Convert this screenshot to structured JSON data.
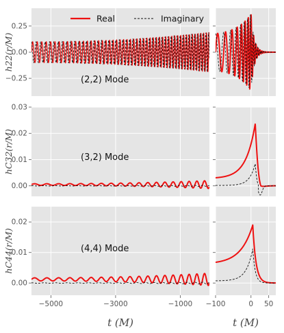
{
  "chart_data": {
    "type": "line",
    "legend": {
      "entries": [
        {
          "label": "Real",
          "color": "#ee1111",
          "style": "solid"
        },
        {
          "label": "Imaginary",
          "color": "#111111",
          "style": "dashed"
        }
      ],
      "placement": "top"
    },
    "colors": {
      "real": "#ee1111",
      "imaginary": "#111111",
      "panel_bg": "#e5e5e5",
      "grid": "#ffffff"
    },
    "grid": true,
    "xlabel_left": "t (M)",
    "xlabel_right": "t (M)",
    "xticks_left": [
      "−5000",
      "−3000",
      "−1000"
    ],
    "xticks_right": [
      "−100",
      "0",
      "50"
    ],
    "xlim_left": [
      -5600,
      -100
    ],
    "xlim_right": [
      -100,
      70
    ],
    "rows": [
      {
        "mode_label": "(2,2) Mode",
        "ylabel": "h22(r/M)",
        "ylim": [
          -0.42,
          0.42
        ],
        "yticks": [
          "0.25",
          "0.00",
          "−0.25"
        ],
        "inspiral": {
          "real_amplitude": [
            0.1,
            0.19
          ],
          "real_offset": 0.0,
          "imag_amplitude": [
            0.1,
            0.19
          ],
          "imag_offset": 0.0,
          "cycles": 38
        },
        "merger": {
          "peak_t": 0,
          "real_peak": 0.37,
          "imag_peak": 0.37
        }
      },
      {
        "mode_label": "(3,2) Mode",
        "ylabel": "hC32(r/M)",
        "ylim": [
          -0.004,
          0.03
        ],
        "yticks": [
          "0.03",
          "0.02",
          "0.01",
          "0.00"
        ],
        "inspiral": {
          "real_amplitude": [
            0.0003,
            0.0015
          ],
          "real_offset": 0.0005,
          "imag_amplitude": [
            5e-05,
            0.0002
          ],
          "imag_offset": 0.0,
          "cycles": 14
        },
        "merger": {
          "peak_t": 12,
          "real_peak": 0.0237,
          "imag_peak": 0.0085,
          "imag_min": -0.0035
        }
      },
      {
        "mode_label": "(4,4) Mode",
        "ylabel": "hC44(r/M)",
        "ylim": [
          -0.004,
          0.025
        ],
        "yticks": [
          "0.02",
          "0.01",
          "0.00"
        ],
        "inspiral": {
          "real_amplitude": [
            0.0005,
            0.002
          ],
          "real_offset": 0.0012,
          "imag_amplitude": [
            8e-05,
            0.0003
          ],
          "imag_offset": 0.0,
          "cycles": 14
        },
        "merger": {
          "peak_t": 5,
          "real_peak": 0.019,
          "imag_peak": 0.0112
        }
      }
    ]
  }
}
